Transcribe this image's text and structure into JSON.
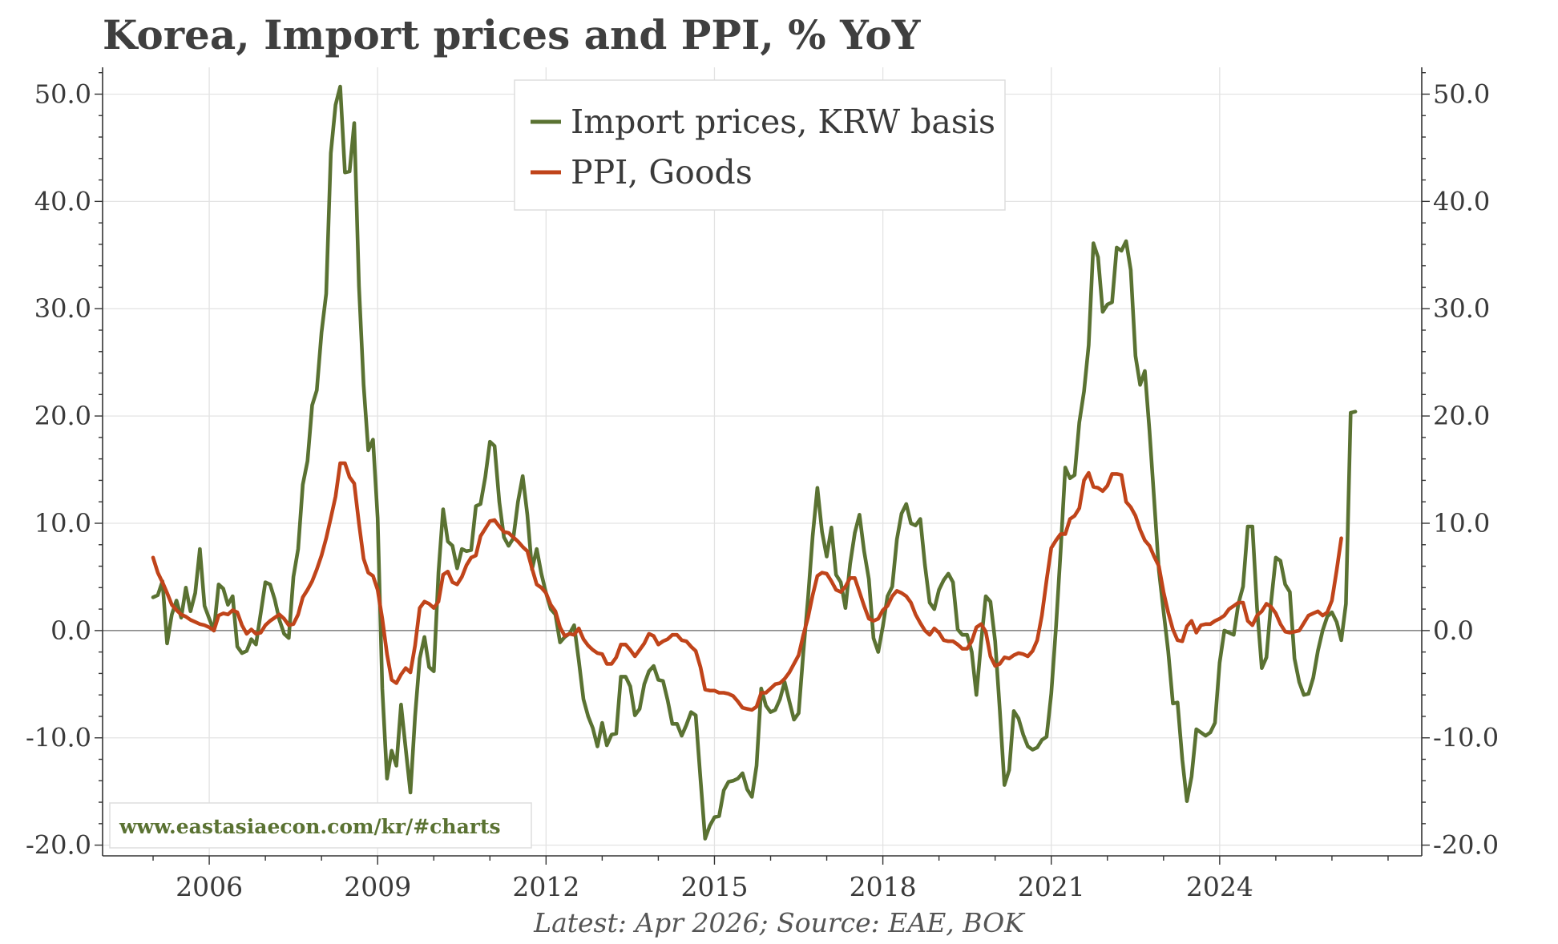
{
  "chart_data": {
    "type": "line",
    "title": "Korea, Import prices and PPI, % YoY",
    "source_note": "Latest: Apr 2026; Source: EAE, BOK",
    "watermark": "www.eastasiaecon.com/kr/#charts",
    "x_start": 2005.0,
    "x_step": 0.0833333,
    "xlim": [
      2004.1,
      2027.6
    ],
    "ylim": [
      -21.0,
      52.5
    ],
    "x_ticks": [
      "2006",
      "2009",
      "2012",
      "2015",
      "2018",
      "2021",
      "2024"
    ],
    "y_ticks_left": [
      "-20.0",
      "-10.0",
      "0.0",
      "10.0",
      "20.0",
      "30.0",
      "40.0",
      "50.0"
    ],
    "y_ticks_right": [
      "-20.0",
      "-10.0",
      "0.0",
      "10.0",
      "20.0",
      "30.0",
      "40.0",
      "50.0"
    ],
    "y_tick_values": [
      -20,
      -10,
      0,
      10,
      20,
      30,
      40,
      50
    ],
    "x_tick_values": [
      2006,
      2009,
      2012,
      2015,
      2018,
      2021,
      2024
    ],
    "grid": true,
    "zero_line": true,
    "legend_position": "top-center",
    "series": [
      {
        "name": "Import prices, KRW basis",
        "color": "#5a7232",
        "values": [
          3.1,
          3.3,
          4.6,
          -1.2,
          1.5,
          2.8,
          1.2,
          4.0,
          1.8,
          3.5,
          7.6,
          2.3,
          1.1,
          0.0,
          4.3,
          3.9,
          2.4,
          3.2,
          -1.5,
          -2.1,
          -1.9,
          -0.8,
          -1.3,
          1.6,
          4.5,
          4.3,
          2.9,
          1.0,
          -0.3,
          -0.7,
          5.0,
          7.6,
          13.6,
          15.8,
          21.0,
          22.4,
          27.8,
          31.4,
          44.5,
          49.0,
          50.7,
          42.7,
          42.8,
          47.3,
          32.1,
          22.9,
          16.8,
          17.8,
          10.5,
          -5.4,
          -13.8,
          -11.2,
          -12.6,
          -6.9,
          -11.0,
          -15.1,
          -8.0,
          -2.6,
          -0.6,
          -3.4,
          -3.8,
          5.4,
          11.3,
          8.3,
          7.9,
          5.8,
          7.6,
          7.4,
          7.5,
          11.6,
          11.8,
          14.3,
          17.6,
          17.2,
          12.0,
          8.7,
          7.9,
          8.6,
          12.0,
          14.4,
          10.8,
          5.7,
          7.6,
          5.3,
          3.5,
          2.0,
          1.5,
          -1.1,
          -0.6,
          -0.3,
          0.5,
          -2.8,
          -6.4,
          -8.0,
          -9.1,
          -10.8,
          -8.6,
          -10.7,
          -9.7,
          -9.6,
          -4.3,
          -4.3,
          -5.2,
          -7.9,
          -7.3,
          -5.0,
          -3.8,
          -3.3,
          -4.6,
          -4.7,
          -6.5,
          -8.7,
          -8.7,
          -9.8,
          -8.8,
          -7.6,
          -7.9,
          -13.8,
          -19.4,
          -18.2,
          -17.4,
          -17.3,
          -14.9,
          -14.1,
          -14.0,
          -13.8,
          -13.3,
          -14.8,
          -15.5,
          -12.6,
          -5.4,
          -7.0,
          -7.6,
          -7.4,
          -6.4,
          -4.8,
          -6.6,
          -8.3,
          -7.7,
          -2.0,
          3.0,
          8.8,
          13.3,
          9.2,
          6.9,
          9.6,
          5.2,
          4.5,
          2.1,
          6.2,
          9.1,
          10.8,
          7.4,
          4.8,
          -0.7,
          -2.0,
          0.4,
          3.2,
          4.1,
          8.5,
          10.9,
          11.8,
          10.0,
          9.8,
          10.4,
          6.1,
          2.6,
          2.0,
          3.8,
          4.7,
          5.3,
          4.5,
          0.1,
          -0.4,
          -0.4,
          -2.0,
          -6.0,
          -1.1,
          3.2,
          2.7,
          -1.0,
          -7.4,
          -14.4,
          -13.0,
          -7.5,
          -8.2,
          -9.7,
          -10.8,
          -11.1,
          -10.9,
          -10.2,
          -9.9,
          -5.9,
          0.3,
          7.4,
          15.2,
          14.2,
          14.5,
          19.4,
          22.3,
          26.6,
          36.1,
          34.8,
          29.7,
          30.4,
          30.6,
          35.7,
          35.4,
          36.3,
          33.6,
          25.6,
          22.9,
          24.2,
          18.6,
          12.2,
          5.6,
          1.8,
          -1.9,
          -6.8,
          -6.7,
          -12.0,
          -15.9,
          -13.6,
          -9.2,
          -9.5,
          -9.8,
          -9.5,
          -8.6,
          -3.0,
          0.0,
          -0.2,
          -0.4,
          2.5,
          4.1,
          9.7,
          9.7,
          2.1,
          -3.5,
          -2.5,
          2.7,
          6.8,
          6.5,
          4.3,
          3.6,
          -2.6,
          -4.8,
          -6.0,
          -5.9,
          -4.4,
          -1.9,
          0.0,
          1.3,
          1.7,
          0.8,
          -0.9,
          2.5,
          20.3,
          20.4
        ]
      },
      {
        "name": "PPI, Goods",
        "color": "#c0441a",
        "values": [
          6.8,
          5.4,
          4.5,
          3.5,
          2.4,
          1.9,
          1.5,
          1.3,
          1.0,
          0.8,
          0.6,
          0.5,
          0.3,
          0.0,
          1.4,
          1.6,
          1.5,
          1.9,
          1.7,
          0.5,
          -0.3,
          0.1,
          -0.3,
          -0.2,
          0.5,
          0.9,
          1.2,
          1.5,
          1.1,
          0.5,
          0.6,
          1.5,
          3.1,
          3.8,
          4.6,
          5.7,
          7.0,
          8.6,
          10.5,
          12.5,
          15.6,
          15.6,
          14.3,
          13.7,
          10.0,
          6.7,
          5.4,
          5.1,
          3.8,
          1.1,
          -2.2,
          -4.6,
          -4.9,
          -4.1,
          -3.5,
          -3.9,
          -1.4,
          2.1,
          2.7,
          2.5,
          2.1,
          2.7,
          5.2,
          5.5,
          4.5,
          4.3,
          5.0,
          6.1,
          6.8,
          7.0,
          8.8,
          9.5,
          10.2,
          10.3,
          9.7,
          9.2,
          9.1,
          8.7,
          8.3,
          7.8,
          7.4,
          5.8,
          4.3,
          4.0,
          3.5,
          2.4,
          1.8,
          0.3,
          -0.5,
          -0.3,
          -0.4,
          0.2,
          -0.8,
          -1.4,
          -1.8,
          -2.1,
          -2.2,
          -3.1,
          -3.1,
          -2.5,
          -1.3,
          -1.3,
          -1.8,
          -2.4,
          -1.8,
          -1.2,
          -0.3,
          -0.5,
          -1.3,
          -1.0,
          -0.8,
          -0.4,
          -0.4,
          -0.9,
          -1.0,
          -1.5,
          -1.9,
          -3.4,
          -5.5,
          -5.6,
          -5.6,
          -5.8,
          -5.8,
          -5.9,
          -6.1,
          -6.6,
          -7.2,
          -7.3,
          -7.4,
          -7.1,
          -5.8,
          -5.8,
          -5.4,
          -5.0,
          -4.9,
          -4.5,
          -3.9,
          -3.1,
          -2.3,
          -0.4,
          1.2,
          3.3,
          5.1,
          5.4,
          5.3,
          4.6,
          3.8,
          3.6,
          4.1,
          4.9,
          4.9,
          3.6,
          2.3,
          1.1,
          0.9,
          1.1,
          1.9,
          2.3,
          3.2,
          3.7,
          3.5,
          3.2,
          2.6,
          1.5,
          0.7,
          0.0,
          -0.4,
          0.2,
          -0.2,
          -0.9,
          -1.0,
          -1.0,
          -1.3,
          -1.7,
          -1.7,
          -1.0,
          0.3,
          0.6,
          -0.1,
          -2.4,
          -3.3,
          -3.1,
          -2.5,
          -2.6,
          -2.3,
          -2.1,
          -2.2,
          -2.4,
          -1.9,
          -0.9,
          1.4,
          4.7,
          7.7,
          8.4,
          9.0,
          9.0,
          10.4,
          10.7,
          11.4,
          14.0,
          14.7,
          13.4,
          13.3,
          13.0,
          13.5,
          14.6,
          14.6,
          14.5,
          12.0,
          11.5,
          10.7,
          9.4,
          8.4,
          7.9,
          6.9,
          6.0,
          3.6,
          1.7,
          0.1,
          -0.9,
          -1.0,
          0.4,
          0.9,
          -0.2,
          0.5,
          0.6,
          0.6,
          0.9,
          1.1,
          1.4,
          2.0,
          2.3,
          2.6,
          2.6,
          0.9,
          0.5,
          1.4,
          1.8,
          2.5,
          2.2,
          1.6,
          0.6,
          -0.1,
          -0.2,
          -0.1,
          0.0,
          0.7,
          1.4,
          1.6,
          1.8,
          1.4,
          1.7,
          2.8,
          5.6,
          8.6
        ]
      }
    ]
  }
}
